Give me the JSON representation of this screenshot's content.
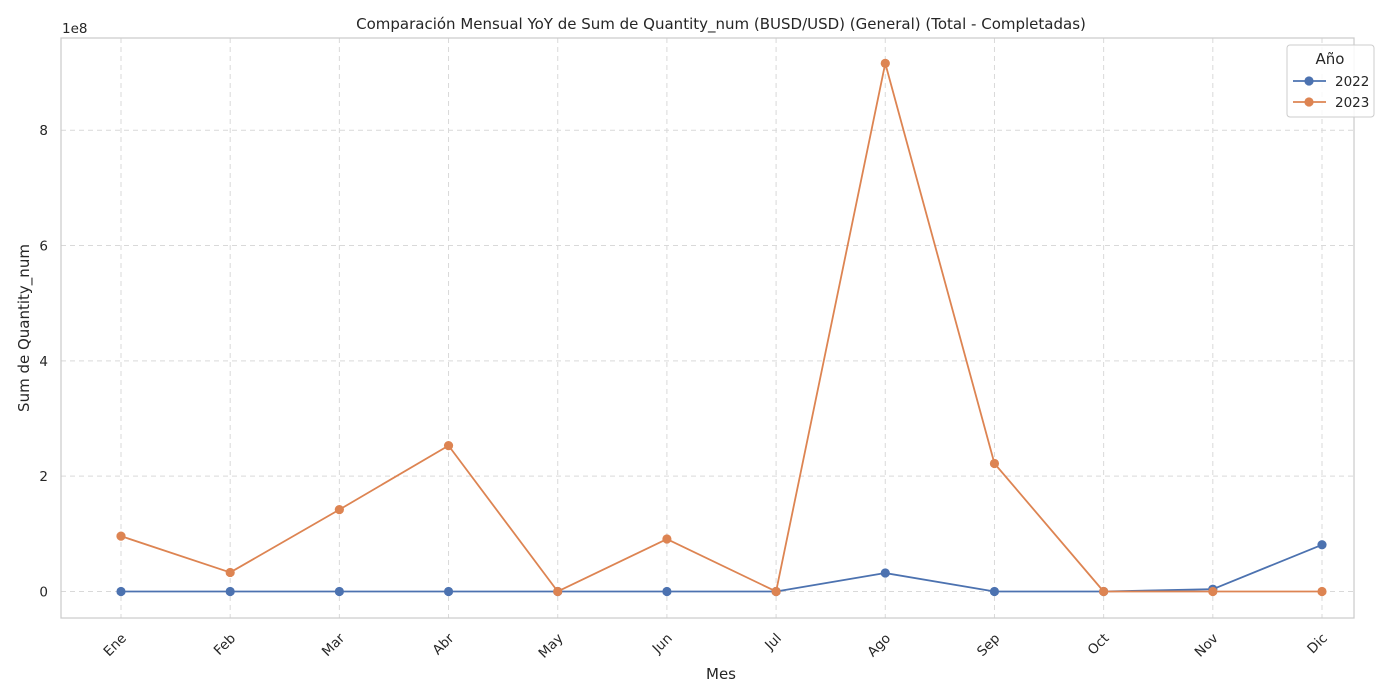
{
  "chart_data": {
    "type": "line",
    "title": "Comparación Mensual YoY de Sum de Quantity_num (BUSD/USD) (General) (Total - Completadas)",
    "xlabel": "Mes",
    "ylabel": "Sum de Quantity_num",
    "y_offset_label": "1e8",
    "categories": [
      "Ene",
      "Feb",
      "Mar",
      "Abr",
      "May",
      "Jun",
      "Jul",
      "Ago",
      "Sep",
      "Oct",
      "Nov",
      "Dic"
    ],
    "yticks": [
      0,
      2,
      4,
      6,
      8
    ],
    "yunit_multiplier": 100000000,
    "ylim": [
      -0.46,
      9.6
    ],
    "grid": true,
    "legend": {
      "title": "Año",
      "position": "top-right"
    },
    "series": [
      {
        "name": "2022",
        "color": "#4c72b0",
        "values": [
          0,
          0,
          0,
          0,
          0,
          0,
          0,
          0.32,
          0,
          0,
          0.04,
          0.81
        ]
      },
      {
        "name": "2023",
        "color": "#dd8452",
        "values": [
          0.96,
          0.33,
          1.42,
          2.53,
          0,
          0.91,
          0,
          9.16,
          2.22,
          0,
          0,
          0
        ]
      }
    ]
  }
}
